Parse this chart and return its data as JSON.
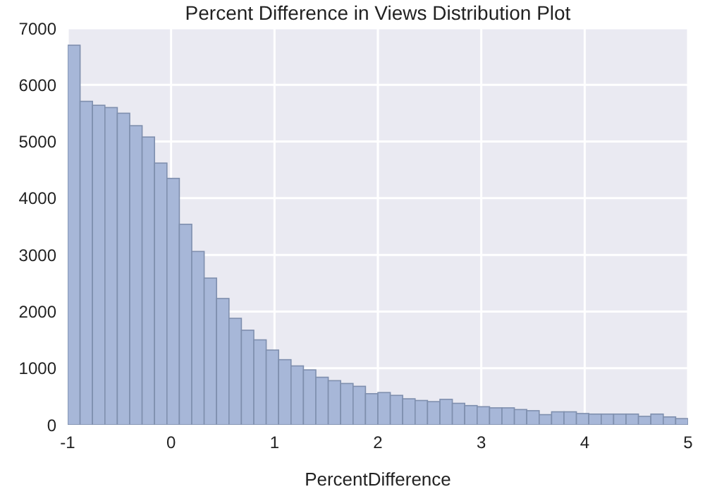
{
  "chart_data": {
    "type": "histogram",
    "title": "Percent Difference in Views Distribution Plot",
    "xlabel": "PercentDifference",
    "bins": [
      -1,
      -0.88,
      -0.76,
      -0.64,
      -0.52,
      -0.4,
      -0.28,
      -0.16,
      -0.04,
      0.08,
      0.2,
      0.32,
      0.44,
      0.56,
      0.68,
      0.8,
      0.92,
      1.04,
      1.16,
      1.28,
      1.4,
      1.52,
      1.64,
      1.76,
      1.88,
      2,
      2.12,
      2.24,
      2.36,
      2.48,
      2.6,
      2.72,
      2.84,
      2.96,
      3.08,
      3.2,
      3.32,
      3.44,
      3.56,
      3.68,
      3.8,
      3.92,
      4.04,
      4.16,
      4.28,
      4.4,
      4.52,
      4.64,
      4.76,
      4.88,
      5
    ],
    "values": [
      6700,
      5710,
      5640,
      5600,
      5500,
      5280,
      5080,
      4620,
      4350,
      3540,
      3060,
      2590,
      2230,
      1880,
      1670,
      1500,
      1320,
      1150,
      1040,
      970,
      840,
      780,
      730,
      680,
      550,
      570,
      520,
      460,
      430,
      410,
      450,
      380,
      340,
      320,
      300,
      300,
      270,
      250,
      180,
      230,
      230,
      200,
      190,
      190,
      190,
      190,
      150,
      190,
      140,
      110
    ],
    "color": "#a7b7d8",
    "xlim": [
      -1,
      5
    ],
    "xticks": [
      -1,
      0,
      1,
      2,
      3,
      4,
      5
    ],
    "ylim": [
      0,
      7000
    ],
    "yticks": [
      0,
      1000,
      2000,
      3000,
      4000,
      5000,
      6000,
      7000
    ],
    "grid": true
  }
}
